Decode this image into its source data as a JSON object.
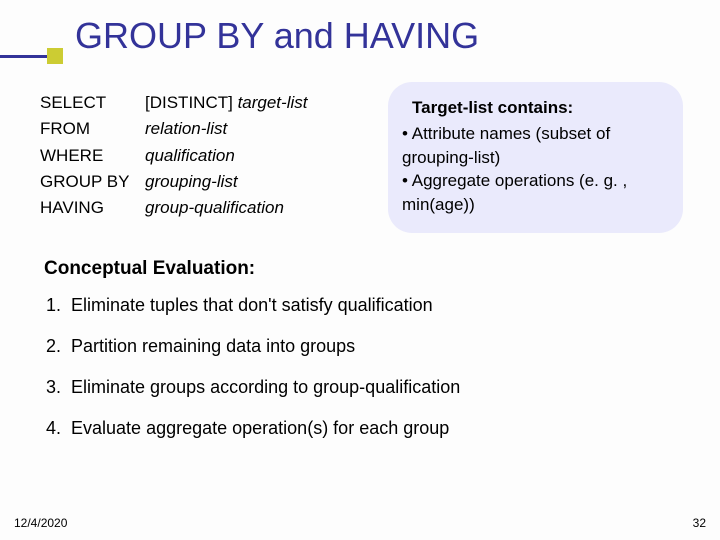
{
  "colors": {
    "title": "#333399",
    "accent_line": "#333399",
    "accent_box": "#cccc33",
    "callout_bg": "#eaeafc",
    "text": "#000000",
    "background": "#fdfdfd"
  },
  "fontsizes": {
    "title_pt": 36,
    "body_pt": 18,
    "sql_pt": 17,
    "callout_pt": 17,
    "footer_pt": 12
  },
  "title": "GROUP BY and HAVING",
  "sql": {
    "rows": [
      {
        "keyword": "SELECT",
        "prefix": "[DISTINCT] ",
        "arg": "target-list"
      },
      {
        "keyword": "FROM",
        "prefix": "",
        "arg": "relation-list"
      },
      {
        "keyword": "WHERE",
        "prefix": "",
        "arg": "qualification"
      },
      {
        "keyword": "GROUP BY",
        "prefix": "",
        "arg": "grouping-list"
      },
      {
        "keyword": "HAVING",
        "prefix": "",
        "arg": "group-qualification"
      }
    ]
  },
  "callout": {
    "title": "Target-list contains:",
    "bullets": [
      "Attribute names (subset of grouping-list)",
      "Aggregate operations (e. g. , min(age))"
    ]
  },
  "conceptual_heading": "Conceptual Evaluation:",
  "steps": [
    "Eliminate tuples that don't satisfy qualification",
    "Partition remaining data into groups",
    "Eliminate groups according to group-qualification",
    "Evaluate aggregate operation(s) for each group"
  ],
  "footer": {
    "date": "12/4/2020",
    "page": "32"
  }
}
